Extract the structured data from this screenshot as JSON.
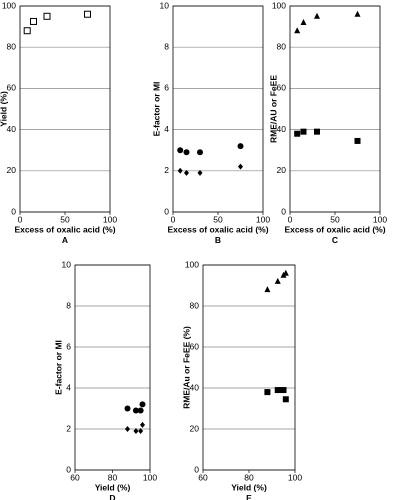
{
  "chart_data": [
    {
      "type": "scatter",
      "panel_label": "A",
      "x_label": "Excess of oxalic acid (%)",
      "y_label": "Yield (%)",
      "x": [
        8,
        15,
        30,
        75
      ],
      "xlim": [
        0,
        100
      ],
      "xticks": [
        0,
        50,
        100
      ],
      "ylim": [
        0,
        100
      ],
      "yticks": [
        0,
        20,
        40,
        60,
        80,
        100
      ],
      "grid": true,
      "series": [
        {
          "marker": "open-square",
          "color": "#000000",
          "values": [
            88,
            92.5,
            95,
            96
          ]
        }
      ]
    },
    {
      "type": "scatter",
      "panel_label": "B",
      "x_label": "Excess of oxalic acid (%)",
      "y_label": "E-factor or MI",
      "x": [
        8,
        15,
        30,
        75
      ],
      "xlim": [
        0,
        100
      ],
      "xticks": [
        0,
        50,
        100
      ],
      "ylim": [
        0,
        10
      ],
      "yticks": [
        0,
        2,
        4,
        6,
        8,
        10
      ],
      "grid": true,
      "series": [
        {
          "marker": "circle",
          "color": "#000000",
          "values": [
            3.0,
            2.9,
            2.9,
            3.2
          ]
        },
        {
          "marker": "diamond",
          "color": "#000000",
          "values": [
            2.0,
            1.9,
            1.9,
            2.2
          ]
        }
      ]
    },
    {
      "type": "scatter",
      "panel_label": "C",
      "x_label": "Excess of oxalic acid (%)",
      "y_label": "RME/AU or FeEE",
      "x": [
        8,
        15,
        30,
        75
      ],
      "xlim": [
        0,
        100
      ],
      "xticks": [
        0,
        50,
        100
      ],
      "ylim": [
        0,
        100
      ],
      "yticks": [
        0,
        20,
        40,
        60,
        80,
        100
      ],
      "grid": true,
      "series": [
        {
          "marker": "triangle",
          "color": "#000000",
          "values": [
            88,
            92,
            95,
            96
          ]
        },
        {
          "marker": "square",
          "color": "#000000",
          "values": [
            38,
            39,
            39,
            34.5
          ]
        }
      ]
    },
    {
      "type": "scatter",
      "panel_label": "D",
      "x_label": "Yield (%)",
      "y_label": "E-factor or MI",
      "x": [
        88,
        92.5,
        95,
        96
      ],
      "xlim": [
        60,
        100
      ],
      "xticks": [
        60,
        80,
        100
      ],
      "ylim": [
        0,
        10
      ],
      "yticks": [
        0,
        2,
        4,
        6,
        8,
        10
      ],
      "grid": true,
      "series": [
        {
          "marker": "circle",
          "color": "#000000",
          "values": [
            3.0,
            2.9,
            2.9,
            3.2
          ]
        },
        {
          "marker": "diamond",
          "color": "#000000",
          "values": [
            2.0,
            1.9,
            1.9,
            2.2
          ]
        }
      ]
    },
    {
      "type": "scatter",
      "panel_label": "E",
      "x_label": "Yield (%)",
      "y_label": "RME/Au or FeEE (%)",
      "x": [
        88,
        92.5,
        95,
        96
      ],
      "xlim": [
        60,
        100
      ],
      "xticks": [
        60,
        80,
        100
      ],
      "ylim": [
        0,
        100
      ],
      "yticks": [
        0,
        20,
        40,
        60,
        80,
        100
      ],
      "grid": true,
      "series": [
        {
          "marker": "triangle",
          "color": "#000000",
          "values": [
            88,
            92,
            95,
            96
          ]
        },
        {
          "marker": "square",
          "color": "#000000",
          "values": [
            38,
            39,
            39,
            34.5
          ]
        }
      ]
    }
  ]
}
